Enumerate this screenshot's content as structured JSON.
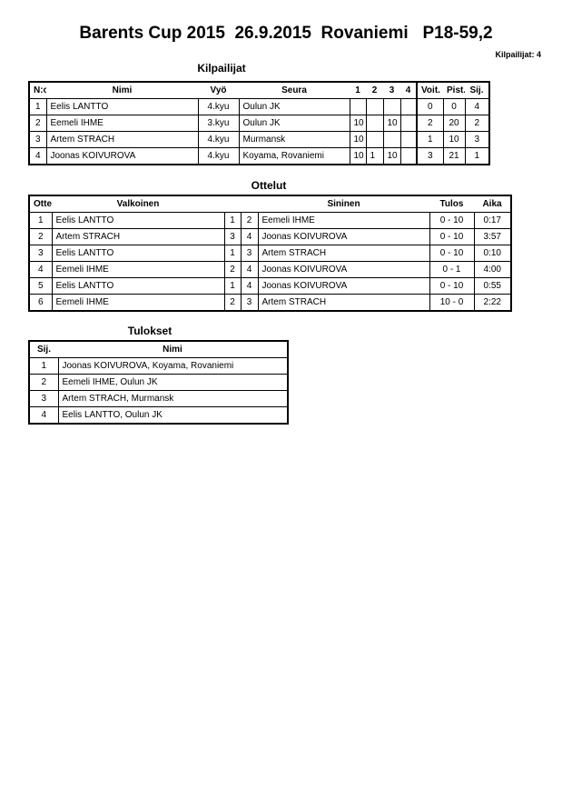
{
  "title": "Barents Cup 2015  26.9.2015  Rovaniemi   P18-59,2",
  "competitor_count": "Kilpailijat: 4",
  "competitors": {
    "heading": "Kilpailijat",
    "headers": [
      "N:o",
      "Nimi",
      "Vyö",
      "Seura",
      "1",
      "2",
      "3",
      "4",
      "Voit.",
      "Pist.",
      "Sij."
    ],
    "rows": [
      [
        "1",
        "Eelis LANTTO",
        "4.kyu",
        "Oulun JK",
        "",
        "",
        "",
        "",
        "0",
        "0",
        "4"
      ],
      [
        "2",
        "Eemeli IHME",
        "3.kyu",
        "Oulun JK",
        "10",
        "",
        "10",
        "",
        "2",
        "20",
        "2"
      ],
      [
        "3",
        "Artem STRACH",
        "4.kyu",
        "Murmansk",
        "10",
        "",
        "",
        "",
        "1",
        "10",
        "3"
      ],
      [
        "4",
        "Joonas KOIVUROVA",
        "4.kyu",
        "Koyama, Rovaniemi",
        "10",
        "1",
        "10",
        "",
        "3",
        "21",
        "1"
      ]
    ]
  },
  "matches": {
    "heading": "Ottelut",
    "headers": [
      "Ottelu",
      "Valkoinen",
      "",
      "",
      "Sininen",
      "Tulos",
      "Aika"
    ],
    "rows": [
      [
        "1",
        "Eelis LANTTO",
        "1",
        "2",
        "Eemeli IHME",
        "0 - 10",
        "0:17"
      ],
      [
        "2",
        "Artem STRACH",
        "3",
        "4",
        "Joonas KOIVUROVA",
        "0 - 10",
        "3:57"
      ],
      [
        "3",
        "Eelis LANTTO",
        "1",
        "3",
        "Artem STRACH",
        "0 - 10",
        "0:10"
      ],
      [
        "4",
        "Eemeli IHME",
        "2",
        "4",
        "Joonas KOIVUROVA",
        "0 - 1",
        "4:00"
      ],
      [
        "5",
        "Eelis LANTTO",
        "1",
        "4",
        "Joonas KOIVUROVA",
        "0 - 10",
        "0:55"
      ],
      [
        "6",
        "Eemeli IHME",
        "2",
        "3",
        "Artem STRACH",
        "10 - 0",
        "2:22"
      ]
    ]
  },
  "results": {
    "heading": "Tulokset",
    "headers": [
      "Sij.",
      "Nimi"
    ],
    "rows": [
      [
        "1",
        "Joonas KOIVUROVA, Koyama, Rovaniemi"
      ],
      [
        "2",
        "Eemeli IHME, Oulun JK"
      ],
      [
        "3",
        "Artem STRACH, Murmansk"
      ],
      [
        "4",
        "Eelis LANTTO, Oulun JK"
      ]
    ]
  }
}
